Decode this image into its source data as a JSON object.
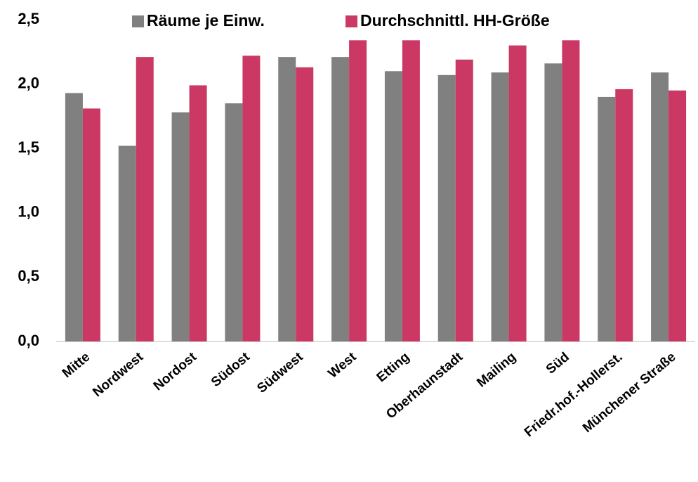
{
  "chart_data": {
    "type": "bar",
    "categories": [
      "Mitte",
      "Nordwest",
      "Nordost",
      "Südost",
      "Südwest",
      "West",
      "Etting",
      "Oberhaunstadt",
      "Mailing",
      "Süd",
      "Friedr.hof.-Hollerst.",
      "Münchener Straße"
    ],
    "series": [
      {
        "name": "Räume je Einw.",
        "color": "#808080",
        "values": [
          1.93,
          1.52,
          1.78,
          1.85,
          2.21,
          2.21,
          2.1,
          2.07,
          2.09,
          2.16,
          1.9,
          2.09
        ]
      },
      {
        "name": "Durchschnittl. HH-Größe",
        "color": "#cc3864",
        "values": [
          1.81,
          2.21,
          1.99,
          2.22,
          2.13,
          2.34,
          2.34,
          2.19,
          2.3,
          2.34,
          1.96,
          1.95
        ]
      }
    ],
    "ylim": [
      0,
      2.5
    ],
    "yticks": [
      {
        "value": 0,
        "label": "0,0"
      },
      {
        "value": 0.5,
        "label": "0,5"
      },
      {
        "value": 1,
        "label": "1,0"
      },
      {
        "value": 1.5,
        "label": "1,5"
      },
      {
        "value": 2,
        "label": "2,0"
      },
      {
        "value": 2.5,
        "label": "2,5"
      }
    ],
    "legend": "top"
  }
}
